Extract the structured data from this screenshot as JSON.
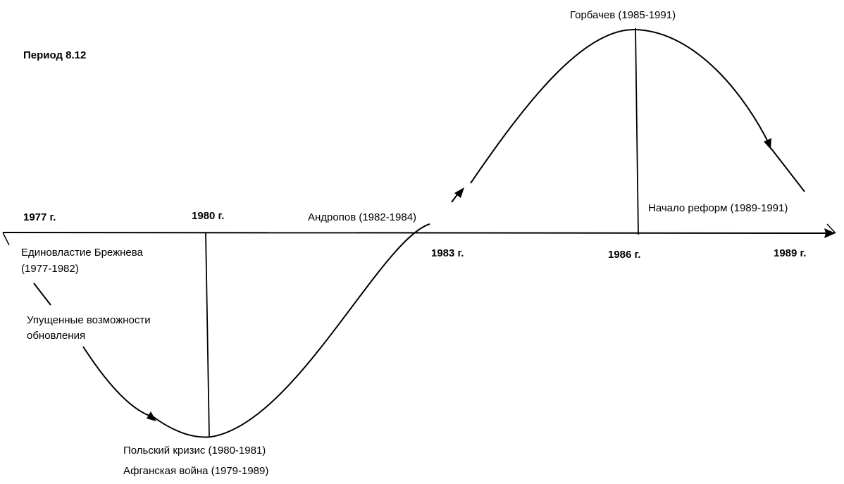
{
  "title": "Период 8.12",
  "colors": {
    "line": "#000000",
    "background": "#ffffff",
    "text": "#000000"
  },
  "timeline": {
    "years": [
      "1977 г.",
      "1980 г.",
      "1983 г.",
      "1986 г.",
      "1989 г."
    ]
  },
  "events": {
    "brezhnev_line1": "Единовластие Брежнева",
    "brezhnev_line2": "(1977-1982)",
    "missed_line1": "Упущенные возможности",
    "missed_line2": "обновления",
    "polish_crisis": "Польский кризис (1980-1981)",
    "afghan_war": "Афганская война (1979-1989)",
    "andropov": "Андропов (1982-1984)",
    "gorbachev": "Горбачев (1985-1991)",
    "reforms_start": "Начало реформ (1989-1991)"
  }
}
